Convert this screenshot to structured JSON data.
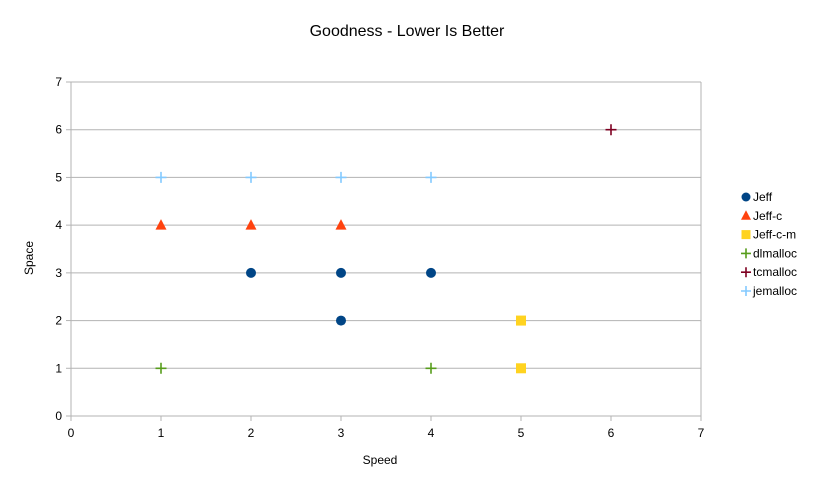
{
  "chart_data": {
    "type": "scatter",
    "title": "Goodness - Lower Is Better",
    "xlabel": "Speed",
    "ylabel": "Space",
    "xlim": [
      0,
      7
    ],
    "ylim": [
      0,
      7
    ],
    "xticks": [
      "0",
      "1",
      "2",
      "3",
      "4",
      "5",
      "6",
      "7"
    ],
    "yticks": [
      "0",
      "1",
      "2",
      "3",
      "4",
      "5",
      "6",
      "7"
    ],
    "grid": "horizontal",
    "legend": "right",
    "series": [
      {
        "name": "Jeff",
        "marker": "circle",
        "color": "#004586",
        "points": [
          [
            2,
            3
          ],
          [
            3,
            3
          ],
          [
            4,
            3
          ],
          [
            3,
            2
          ]
        ]
      },
      {
        "name": "Jeff-c",
        "marker": "triangle",
        "color": "#ff420e",
        "points": [
          [
            1,
            4
          ],
          [
            2,
            4
          ],
          [
            3,
            4
          ]
        ]
      },
      {
        "name": "Jeff-c-m",
        "marker": "square",
        "color": "#ffd320",
        "points": [
          [
            5,
            2
          ],
          [
            5,
            1
          ]
        ]
      },
      {
        "name": "dlmalloc",
        "marker": "plus",
        "color": "#579d1c",
        "points": [
          [
            1,
            1
          ],
          [
            4,
            1
          ]
        ]
      },
      {
        "name": "tcmalloc",
        "marker": "plus",
        "color": "#7e0021",
        "points": [
          [
            6,
            6
          ]
        ]
      },
      {
        "name": "jemalloc",
        "marker": "plus",
        "color": "#83caff",
        "points": [
          [
            1,
            5
          ],
          [
            2,
            5
          ],
          [
            3,
            5
          ],
          [
            4,
            5
          ]
        ]
      }
    ]
  }
}
